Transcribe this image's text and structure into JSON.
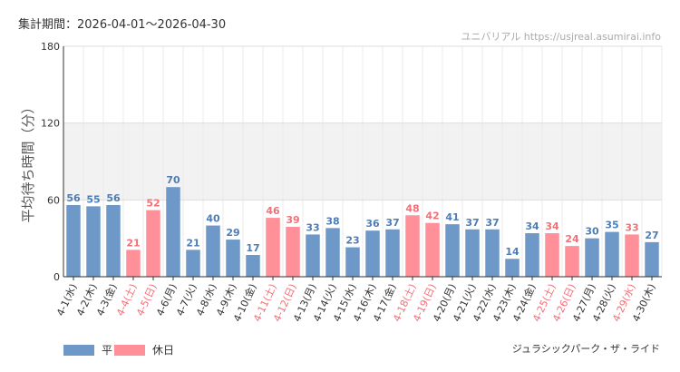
{
  "period_label": "集計期間：2026-04-01～2026-04-30",
  "source": "ユニバリアル https://usjreal.asumirai.info",
  "series_name": "ジュラシックパーク・ザ・ライド",
  "colors": {
    "weekday": "#6e98c8",
    "holiday": "#ff8f98",
    "weekday_label": "#4e7db5",
    "holiday_label": "#f07078",
    "band": "#f2f2f2"
  },
  "legend": [
    {
      "label": "平日",
      "color": "#6e98c8"
    },
    {
      "label": "休日",
      "color": "#ff8f98"
    }
  ],
  "chart_data": {
    "type": "bar",
    "ylabel": "平均待ち時間（分）",
    "ylim": [
      0,
      180
    ],
    "yticks": [
      0,
      60,
      120,
      180
    ],
    "grid": true,
    "categories": [
      "4-1(水)",
      "4-2(木)",
      "4-3(金)",
      "4-4(土)",
      "4-5(日)",
      "4-6(月)",
      "4-7(火)",
      "4-8(水)",
      "4-9(木)",
      "4-10(金)",
      "4-11(土)",
      "4-12(日)",
      "4-13(月)",
      "4-14(火)",
      "4-15(水)",
      "4-16(木)",
      "4-17(金)",
      "4-18(土)",
      "4-19(日)",
      "4-20(月)",
      "4-21(火)",
      "4-22(水)",
      "4-23(木)",
      "4-24(金)",
      "4-25(土)",
      "4-26(日)",
      "4-27(月)",
      "4-28(火)",
      "4-29(水)",
      "4-30(木)"
    ],
    "values": [
      56,
      55,
      56,
      21,
      52,
      70,
      21,
      40,
      29,
      17,
      46,
      39,
      33,
      38,
      23,
      36,
      37,
      48,
      42,
      41,
      37,
      37,
      14,
      34,
      34,
      24,
      30,
      35,
      33,
      27
    ],
    "day_type": [
      "平日",
      "平日",
      "平日",
      "休日",
      "休日",
      "平日",
      "平日",
      "平日",
      "平日",
      "平日",
      "休日",
      "休日",
      "平日",
      "平日",
      "平日",
      "平日",
      "平日",
      "休日",
      "休日",
      "平日",
      "平日",
      "平日",
      "平日",
      "平日",
      "休日",
      "休日",
      "平日",
      "平日",
      "休日",
      "平日"
    ]
  }
}
